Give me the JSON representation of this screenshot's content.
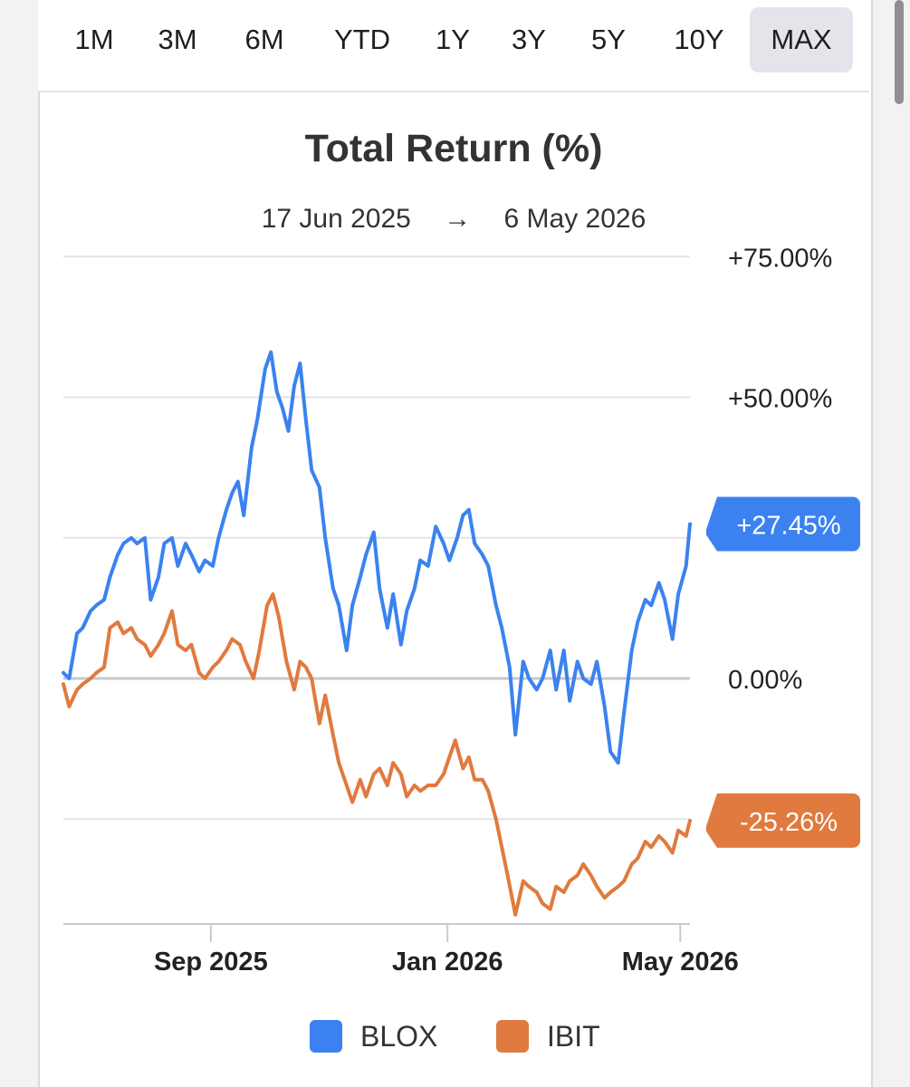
{
  "range_selector": {
    "options": [
      "1M",
      "3M",
      "6M",
      "YTD",
      "1Y",
      "3Y",
      "5Y",
      "10Y",
      "MAX"
    ],
    "selected": "MAX"
  },
  "header": {
    "title": "Total Return (%)",
    "start_date": "17 Jun 2025",
    "arrow": "→",
    "end_date": "6 May 2026"
  },
  "colors": {
    "BLOX": "#3b82f0",
    "IBIT": "#e07a3e",
    "grid": "#e3e3e8",
    "zero": "#c8c8cc"
  },
  "chart_data": {
    "type": "line",
    "title": "Total Return (%)",
    "ylim": [
      -44,
      75
    ],
    "y_ticks": [
      75,
      50,
      25,
      0,
      -25
    ],
    "y_tick_labels": [
      "+75.00%",
      "+50.00%",
      "",
      "0.00%",
      ""
    ],
    "x_ticks": [
      {
        "date": "2025-09-01",
        "label": "Sep 2025"
      },
      {
        "date": "2026-01-01",
        "label": "Jan 2026"
      },
      {
        "date": "2026-05-01",
        "label": "May 2026"
      }
    ],
    "x_range": [
      "2025-06-17",
      "2026-05-06"
    ],
    "grid": true,
    "legend": "bottom",
    "series": [
      {
        "name": "BLOX",
        "end_label": "+27.45%",
        "points": [
          [
            "2025-06-17",
            1
          ],
          [
            "2025-06-20",
            0
          ],
          [
            "2025-06-24",
            8
          ],
          [
            "2025-06-27",
            9
          ],
          [
            "2025-07-01",
            12
          ],
          [
            "2025-07-04",
            13
          ],
          [
            "2025-07-08",
            14
          ],
          [
            "2025-07-11",
            18
          ],
          [
            "2025-07-15",
            22
          ],
          [
            "2025-07-18",
            24
          ],
          [
            "2025-07-22",
            25
          ],
          [
            "2025-07-25",
            24
          ],
          [
            "2025-07-29",
            25
          ],
          [
            "2025-08-01",
            14
          ],
          [
            "2025-08-05",
            18
          ],
          [
            "2025-08-08",
            24
          ],
          [
            "2025-08-12",
            25
          ],
          [
            "2025-08-15",
            20
          ],
          [
            "2025-08-19",
            24
          ],
          [
            "2025-08-22",
            22
          ],
          [
            "2025-08-26",
            19
          ],
          [
            "2025-08-29",
            21
          ],
          [
            "2025-09-02",
            20
          ],
          [
            "2025-09-05",
            25
          ],
          [
            "2025-09-09",
            30
          ],
          [
            "2025-09-12",
            33
          ],
          [
            "2025-09-15",
            35
          ],
          [
            "2025-09-18",
            29
          ],
          [
            "2025-09-22",
            41
          ],
          [
            "2025-09-25",
            46
          ],
          [
            "2025-09-29",
            55
          ],
          [
            "2025-10-02",
            58
          ],
          [
            "2025-10-05",
            51
          ],
          [
            "2025-10-08",
            48
          ],
          [
            "2025-10-11",
            44
          ],
          [
            "2025-10-14",
            52
          ],
          [
            "2025-10-17",
            56
          ],
          [
            "2025-10-20",
            46
          ],
          [
            "2025-10-23",
            37
          ],
          [
            "2025-10-27",
            34
          ],
          [
            "2025-10-30",
            25
          ],
          [
            "2025-11-03",
            16
          ],
          [
            "2025-11-06",
            13
          ],
          [
            "2025-11-10",
            5
          ],
          [
            "2025-11-13",
            13
          ],
          [
            "2025-11-17",
            18
          ],
          [
            "2025-11-20",
            22
          ],
          [
            "2025-11-24",
            26
          ],
          [
            "2025-11-27",
            16
          ],
          [
            "2025-12-01",
            9
          ],
          [
            "2025-12-04",
            15
          ],
          [
            "2025-12-08",
            6
          ],
          [
            "2025-12-11",
            12
          ],
          [
            "2025-12-15",
            16
          ],
          [
            "2025-12-18",
            21
          ],
          [
            "2025-12-22",
            20
          ],
          [
            "2025-12-26",
            27
          ],
          [
            "2025-12-30",
            24
          ],
          [
            "2026-01-02",
            21
          ],
          [
            "2026-01-06",
            25
          ],
          [
            "2026-01-09",
            29
          ],
          [
            "2026-01-12",
            30
          ],
          [
            "2026-01-15",
            24
          ],
          [
            "2026-01-19",
            22
          ],
          [
            "2026-01-22",
            20
          ],
          [
            "2026-01-26",
            13
          ],
          [
            "2026-01-29",
            9
          ],
          [
            "2026-02-02",
            2
          ],
          [
            "2026-02-05",
            -10
          ],
          [
            "2026-02-09",
            3
          ],
          [
            "2026-02-12",
            0
          ],
          [
            "2026-02-16",
            -2
          ],
          [
            "2026-02-19",
            0
          ],
          [
            "2026-02-23",
            5
          ],
          [
            "2026-02-26",
            -2
          ],
          [
            "2026-03-02",
            5
          ],
          [
            "2026-03-05",
            -4
          ],
          [
            "2026-03-09",
            3
          ],
          [
            "2026-03-12",
            0
          ],
          [
            "2026-03-16",
            -1
          ],
          [
            "2026-03-19",
            3
          ],
          [
            "2026-03-23",
            -5
          ],
          [
            "2026-03-26",
            -13
          ],
          [
            "2026-03-30",
            -15
          ],
          [
            "2026-04-02",
            -6
          ],
          [
            "2026-04-06",
            5
          ],
          [
            "2026-04-09",
            10
          ],
          [
            "2026-04-13",
            14
          ],
          [
            "2026-04-16",
            13
          ],
          [
            "2026-04-20",
            17
          ],
          [
            "2026-04-23",
            14
          ],
          [
            "2026-04-27",
            7
          ],
          [
            "2026-04-30",
            15
          ],
          [
            "2026-05-04",
            20
          ],
          [
            "2026-05-06",
            27.45
          ]
        ]
      },
      {
        "name": "IBIT",
        "end_label": "-25.26%",
        "points": [
          [
            "2025-06-17",
            -1
          ],
          [
            "2025-06-20",
            -5
          ],
          [
            "2025-06-24",
            -2
          ],
          [
            "2025-06-27",
            -1
          ],
          [
            "2025-07-01",
            0
          ],
          [
            "2025-07-04",
            1
          ],
          [
            "2025-07-08",
            2
          ],
          [
            "2025-07-11",
            9
          ],
          [
            "2025-07-15",
            10
          ],
          [
            "2025-07-18",
            8
          ],
          [
            "2025-07-22",
            9
          ],
          [
            "2025-07-25",
            7
          ],
          [
            "2025-07-29",
            6
          ],
          [
            "2025-08-01",
            4
          ],
          [
            "2025-08-05",
            6
          ],
          [
            "2025-08-08",
            8
          ],
          [
            "2025-08-12",
            12
          ],
          [
            "2025-08-15",
            6
          ],
          [
            "2025-08-19",
            5
          ],
          [
            "2025-08-22",
            6
          ],
          [
            "2025-08-26",
            1
          ],
          [
            "2025-08-29",
            0
          ],
          [
            "2025-09-02",
            2
          ],
          [
            "2025-09-05",
            3
          ],
          [
            "2025-09-09",
            5
          ],
          [
            "2025-09-12",
            7
          ],
          [
            "2025-09-16",
            6
          ],
          [
            "2025-09-19",
            3
          ],
          [
            "2025-09-23",
            0
          ],
          [
            "2025-09-26",
            5
          ],
          [
            "2025-09-30",
            13
          ],
          [
            "2025-10-03",
            15
          ],
          [
            "2025-10-06",
            11
          ],
          [
            "2025-10-10",
            3
          ],
          [
            "2025-10-14",
            -2
          ],
          [
            "2025-10-17",
            3
          ],
          [
            "2025-10-20",
            2
          ],
          [
            "2025-10-23",
            0
          ],
          [
            "2025-10-27",
            -8
          ],
          [
            "2025-10-30",
            -3
          ],
          [
            "2025-11-03",
            -10
          ],
          [
            "2025-11-06",
            -15
          ],
          [
            "2025-11-10",
            -19
          ],
          [
            "2025-11-13",
            -22
          ],
          [
            "2025-11-17",
            -18
          ],
          [
            "2025-11-20",
            -21
          ],
          [
            "2025-11-24",
            -17
          ],
          [
            "2025-11-27",
            -16
          ],
          [
            "2025-12-01",
            -19
          ],
          [
            "2025-12-04",
            -15
          ],
          [
            "2025-12-08",
            -17
          ],
          [
            "2025-12-11",
            -21
          ],
          [
            "2025-12-15",
            -19
          ],
          [
            "2025-12-18",
            -20
          ],
          [
            "2025-12-22",
            -19
          ],
          [
            "2025-12-26",
            -19
          ],
          [
            "2025-12-30",
            -17
          ],
          [
            "2026-01-02",
            -14
          ],
          [
            "2026-01-05",
            -11
          ],
          [
            "2026-01-09",
            -16
          ],
          [
            "2026-01-12",
            -14
          ],
          [
            "2026-01-15",
            -18
          ],
          [
            "2026-01-19",
            -18
          ],
          [
            "2026-01-22",
            -20
          ],
          [
            "2026-01-26",
            -25
          ],
          [
            "2026-01-29",
            -30
          ],
          [
            "2026-02-01",
            -35
          ],
          [
            "2026-02-05",
            -42
          ],
          [
            "2026-02-09",
            -36
          ],
          [
            "2026-02-12",
            -37
          ],
          [
            "2026-02-16",
            -38
          ],
          [
            "2026-02-19",
            -40
          ],
          [
            "2026-02-23",
            -41
          ],
          [
            "2026-02-26",
            -37
          ],
          [
            "2026-03-02",
            -38
          ],
          [
            "2026-03-05",
            -36
          ],
          [
            "2026-03-09",
            -35
          ],
          [
            "2026-03-12",
            -33
          ],
          [
            "2026-03-16",
            -35
          ],
          [
            "2026-03-19",
            -37
          ],
          [
            "2026-03-23",
            -39
          ],
          [
            "2026-03-26",
            -38
          ],
          [
            "2026-03-30",
            -37
          ],
          [
            "2026-04-02",
            -36
          ],
          [
            "2026-04-06",
            -33
          ],
          [
            "2026-04-09",
            -32
          ],
          [
            "2026-04-13",
            -29
          ],
          [
            "2026-04-16",
            -30
          ],
          [
            "2026-04-20",
            -28
          ],
          [
            "2026-04-23",
            -29
          ],
          [
            "2026-04-27",
            -31
          ],
          [
            "2026-04-30",
            -27
          ],
          [
            "2026-05-04",
            -28
          ],
          [
            "2026-05-06",
            -25.26
          ]
        ]
      }
    ]
  }
}
